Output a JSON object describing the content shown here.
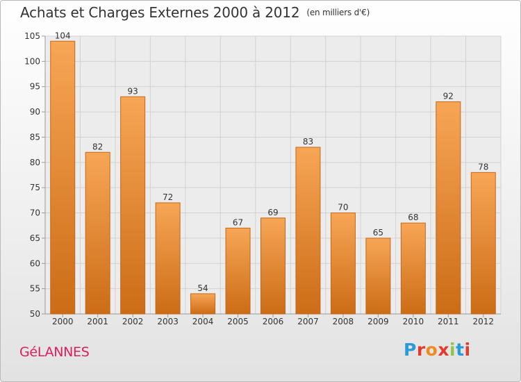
{
  "header": {
    "title": "Achats et Charges Externes 2000 à 2012",
    "unit": "(en milliers d'€)"
  },
  "footer": {
    "commune": "GéLANNES",
    "logo": [
      "P",
      "r",
      "o",
      "x",
      "i",
      "t",
      "i"
    ]
  },
  "colors": {
    "bar_top": "#f7a656",
    "bar_bottom": "#cc6c16",
    "bar_edge": "#c4681a",
    "grid": "#d2d2d2",
    "commune": "#d6205e",
    "text": "#333333"
  },
  "chart_data": {
    "type": "bar",
    "title": "Achats et Charges Externes 2000 à 2012",
    "subtitle": "(en milliers d'€)",
    "categories": [
      "2000",
      "2001",
      "2002",
      "2003",
      "2004",
      "2005",
      "2006",
      "2007",
      "2008",
      "2009",
      "2010",
      "2011",
      "2012"
    ],
    "values": [
      104,
      82,
      93,
      72,
      54,
      67,
      69,
      83,
      70,
      65,
      68,
      92,
      78
    ],
    "ylim": [
      50,
      105
    ],
    "yticks": [
      50,
      55,
      60,
      65,
      70,
      75,
      80,
      85,
      90,
      95,
      100,
      105
    ],
    "grid": true,
    "data_labels": true
  }
}
